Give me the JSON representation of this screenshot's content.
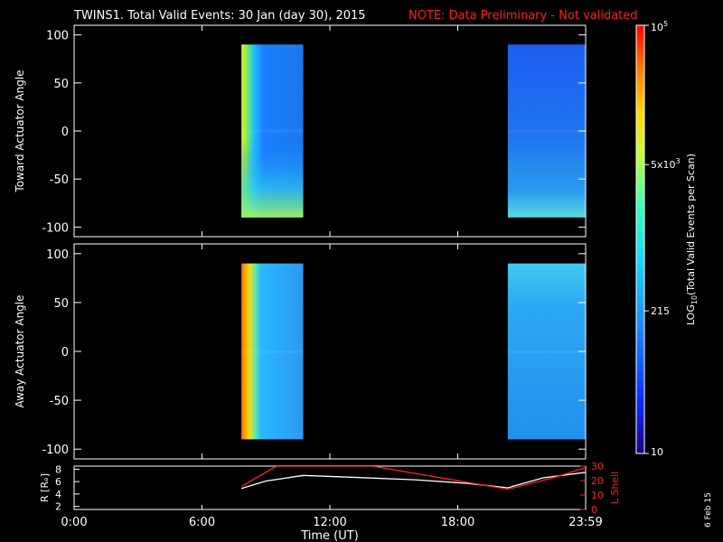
{
  "header": {
    "title": "TWINS1. Total Valid Events: 30 Jan (day  30), 2015",
    "note": "NOTE: Data Preliminary - Not validated"
  },
  "footer": {
    "date_stamp": "6 Feb 15"
  },
  "colors": {
    "background": "#000000",
    "frame": "#ffffff",
    "note": "#ff2020",
    "lshell_line": "#ff2020",
    "r_line": "#ffffff"
  },
  "chart_data": [
    {
      "type": "heatmap",
      "panel": "toward",
      "ylabel": "Toward Actuator Angle",
      "ylim": [
        -110,
        110
      ],
      "yticks": [
        100,
        50,
        0,
        -50,
        -100
      ],
      "xlim": [
        0,
        24
      ],
      "data_blocks": [
        {
          "t_start": 7.85,
          "t_end": 10.75,
          "angle_min": -90,
          "angle_max": 90,
          "level": "medium-high"
        },
        {
          "t_start": 20.35,
          "t_end": 24.0,
          "angle_min": -90,
          "angle_max": 90,
          "level": "low-medium"
        }
      ]
    },
    {
      "type": "heatmap",
      "panel": "away",
      "ylabel": "Away Actuator Angle",
      "ylim": [
        -110,
        110
      ],
      "yticks": [
        100,
        50,
        0,
        -50,
        -100
      ],
      "xlim": [
        0,
        24
      ],
      "data_blocks": [
        {
          "t_start": 7.85,
          "t_end": 10.75,
          "angle_min": -90,
          "angle_max": 90,
          "level": "high"
        },
        {
          "t_start": 20.35,
          "t_end": 24.0,
          "angle_min": -90,
          "angle_max": 90,
          "level": "low-medium"
        }
      ]
    },
    {
      "type": "line",
      "panel": "orbit",
      "xlabel": "Time (UT)",
      "xticks": [
        "0:00",
        "6:00",
        "12:00",
        "18:00",
        "23:59"
      ],
      "xtick_values": [
        0,
        6,
        12,
        18,
        24
      ],
      "left_axis": {
        "label": "R [Rₑ]",
        "ticks": [
          "8",
          "6",
          "4",
          "2"
        ],
        "tick_values": [
          8,
          6,
          4,
          2
        ],
        "ylim": [
          1.5,
          8.5
        ]
      },
      "right_axis": {
        "label": "L Shell",
        "ticks": [
          "30",
          "20",
          "10",
          "0"
        ],
        "tick_values": [
          30,
          20,
          10,
          0
        ],
        "ylim": [
          0,
          30
        ]
      },
      "series": [
        {
          "axis": "left",
          "x": [
            7.85,
            9.0,
            10.75,
            13.0,
            16.0,
            18.5,
            20.35,
            22.0,
            24.0
          ],
          "y": [
            4.9,
            6.1,
            7.0,
            6.7,
            6.3,
            5.7,
            5.0,
            6.6,
            7.5
          ]
        },
        {
          "axis": "right",
          "x": [
            7.85,
            9.5,
            14.0,
            20.35,
            22.5,
            24.0
          ],
          "y": [
            16,
            30,
            30,
            14,
            22,
            29
          ]
        }
      ]
    }
  ],
  "colorbar": {
    "label": "LOG10(Total Valid Events per Scan)",
    "label_main": "LOG",
    "label_sub": "10",
    "label_rest": "(Total Valid Events per Scan)",
    "ticks": [
      {
        "base": "10",
        "sup": "5",
        "value": 100000
      },
      {
        "base": "5x10",
        "sup": "3",
        "value": 5000
      },
      {
        "base": "215",
        "sup": "",
        "value": 215
      },
      {
        "base": "10",
        "sup": "",
        "value": 10
      }
    ],
    "range": [
      10,
      100000
    ],
    "scale": "log"
  }
}
